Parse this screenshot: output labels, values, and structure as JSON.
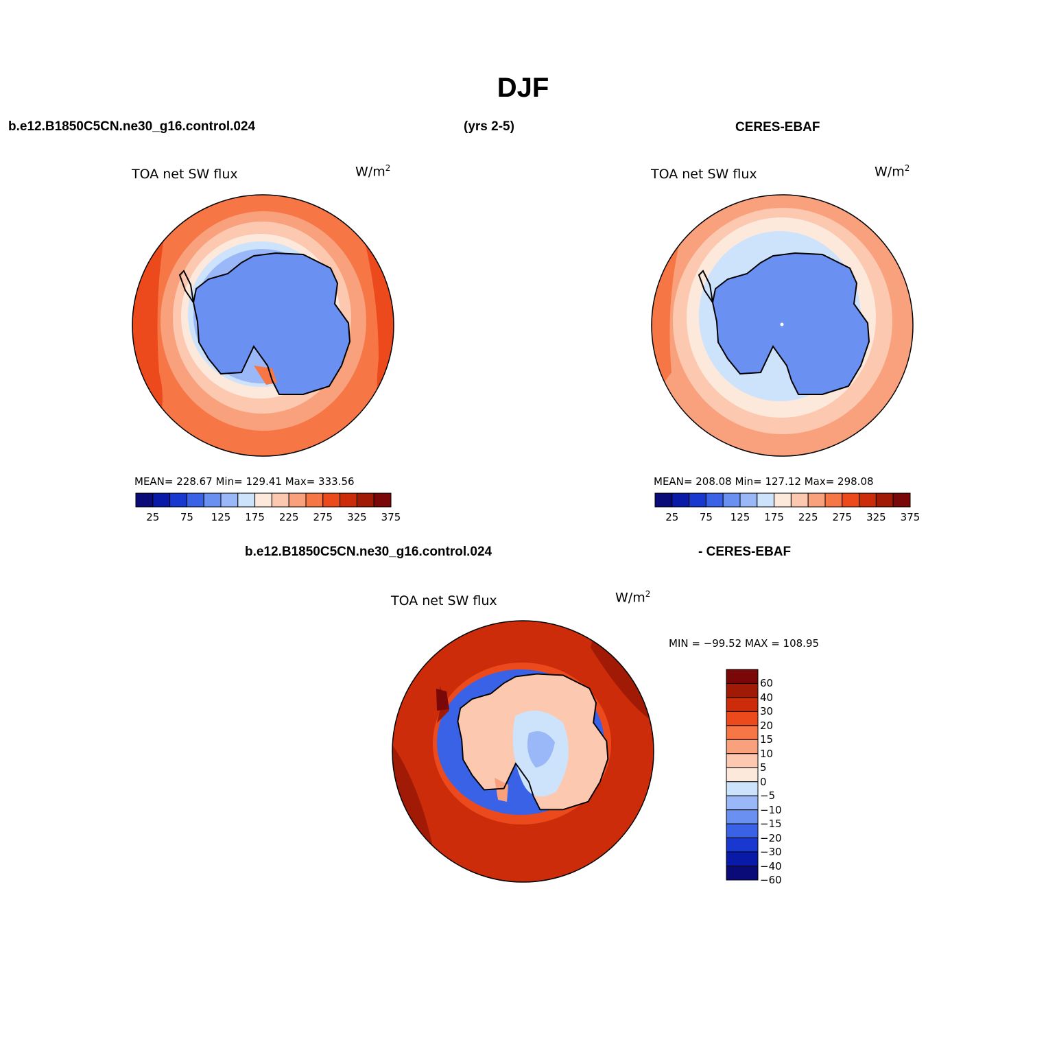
{
  "figure": {
    "title": "DJF",
    "case_label": "b.e12.B1850C5CN.ne30_g16.control.024",
    "years_label": "(yrs 2-5)",
    "obs_label": "CERES-EBAF",
    "diff_case_label": "b.e12.B1850C5CN.ne30_g16.control.024",
    "diff_obs_label": "- CERES-EBAF"
  },
  "panels": {
    "model": {
      "variable": "TOA net SW flux",
      "units_base": "W/m",
      "units_exp": "2",
      "stats": "MEAN= 228.67   Min= 129.41   Max= 333.56"
    },
    "obs": {
      "variable": "TOA net SW flux",
      "units_base": "W/m",
      "units_exp": "2",
      "stats": "MEAN= 208.08   Min= 127.12   Max= 298.08"
    },
    "diff": {
      "variable": "TOA net SW flux",
      "units_base": "W/m",
      "units_exp": "2",
      "stats": "MIN = −99.52  MAX = 108.95"
    }
  },
  "colorbar_abs": {
    "colors": [
      "#0a0a78",
      "#0a1aa8",
      "#1838d0",
      "#3a62e6",
      "#6a90f2",
      "#9ab8f8",
      "#cde2fb",
      "#fde8dc",
      "#fcc8b0",
      "#f9a07c",
      "#f67646",
      "#ec4a1c",
      "#cc2c0a",
      "#a01a06",
      "#7a0808"
    ],
    "tick_labels": [
      "25",
      "75",
      "125",
      "175",
      "225",
      "275",
      "325",
      "375"
    ]
  },
  "colorbar_diff": {
    "colors": [
      "#7a0808",
      "#a01a06",
      "#cc2c0a",
      "#ec4a1c",
      "#f67646",
      "#f9a07c",
      "#fcc8b0",
      "#fde8dc",
      "#cde2fb",
      "#9ab8f8",
      "#6a90f2",
      "#3a62e6",
      "#1838d0",
      "#0a1aa8",
      "#0a0a78"
    ],
    "tick_labels": [
      "60",
      "40",
      "30",
      "20",
      "15",
      "10",
      "5",
      "0",
      "−5",
      "−10",
      "−15",
      "−20",
      "−30",
      "−40",
      "−60"
    ]
  },
  "colors": {
    "land_outline": "#000000",
    "ocean_far_model": "#ec4a1c",
    "ocean_far_obs": "#f9a07c",
    "ice_model": "#6a90f2",
    "ice_obs": "#6a90f2",
    "diff_ocean": "#cc2c0a"
  }
}
